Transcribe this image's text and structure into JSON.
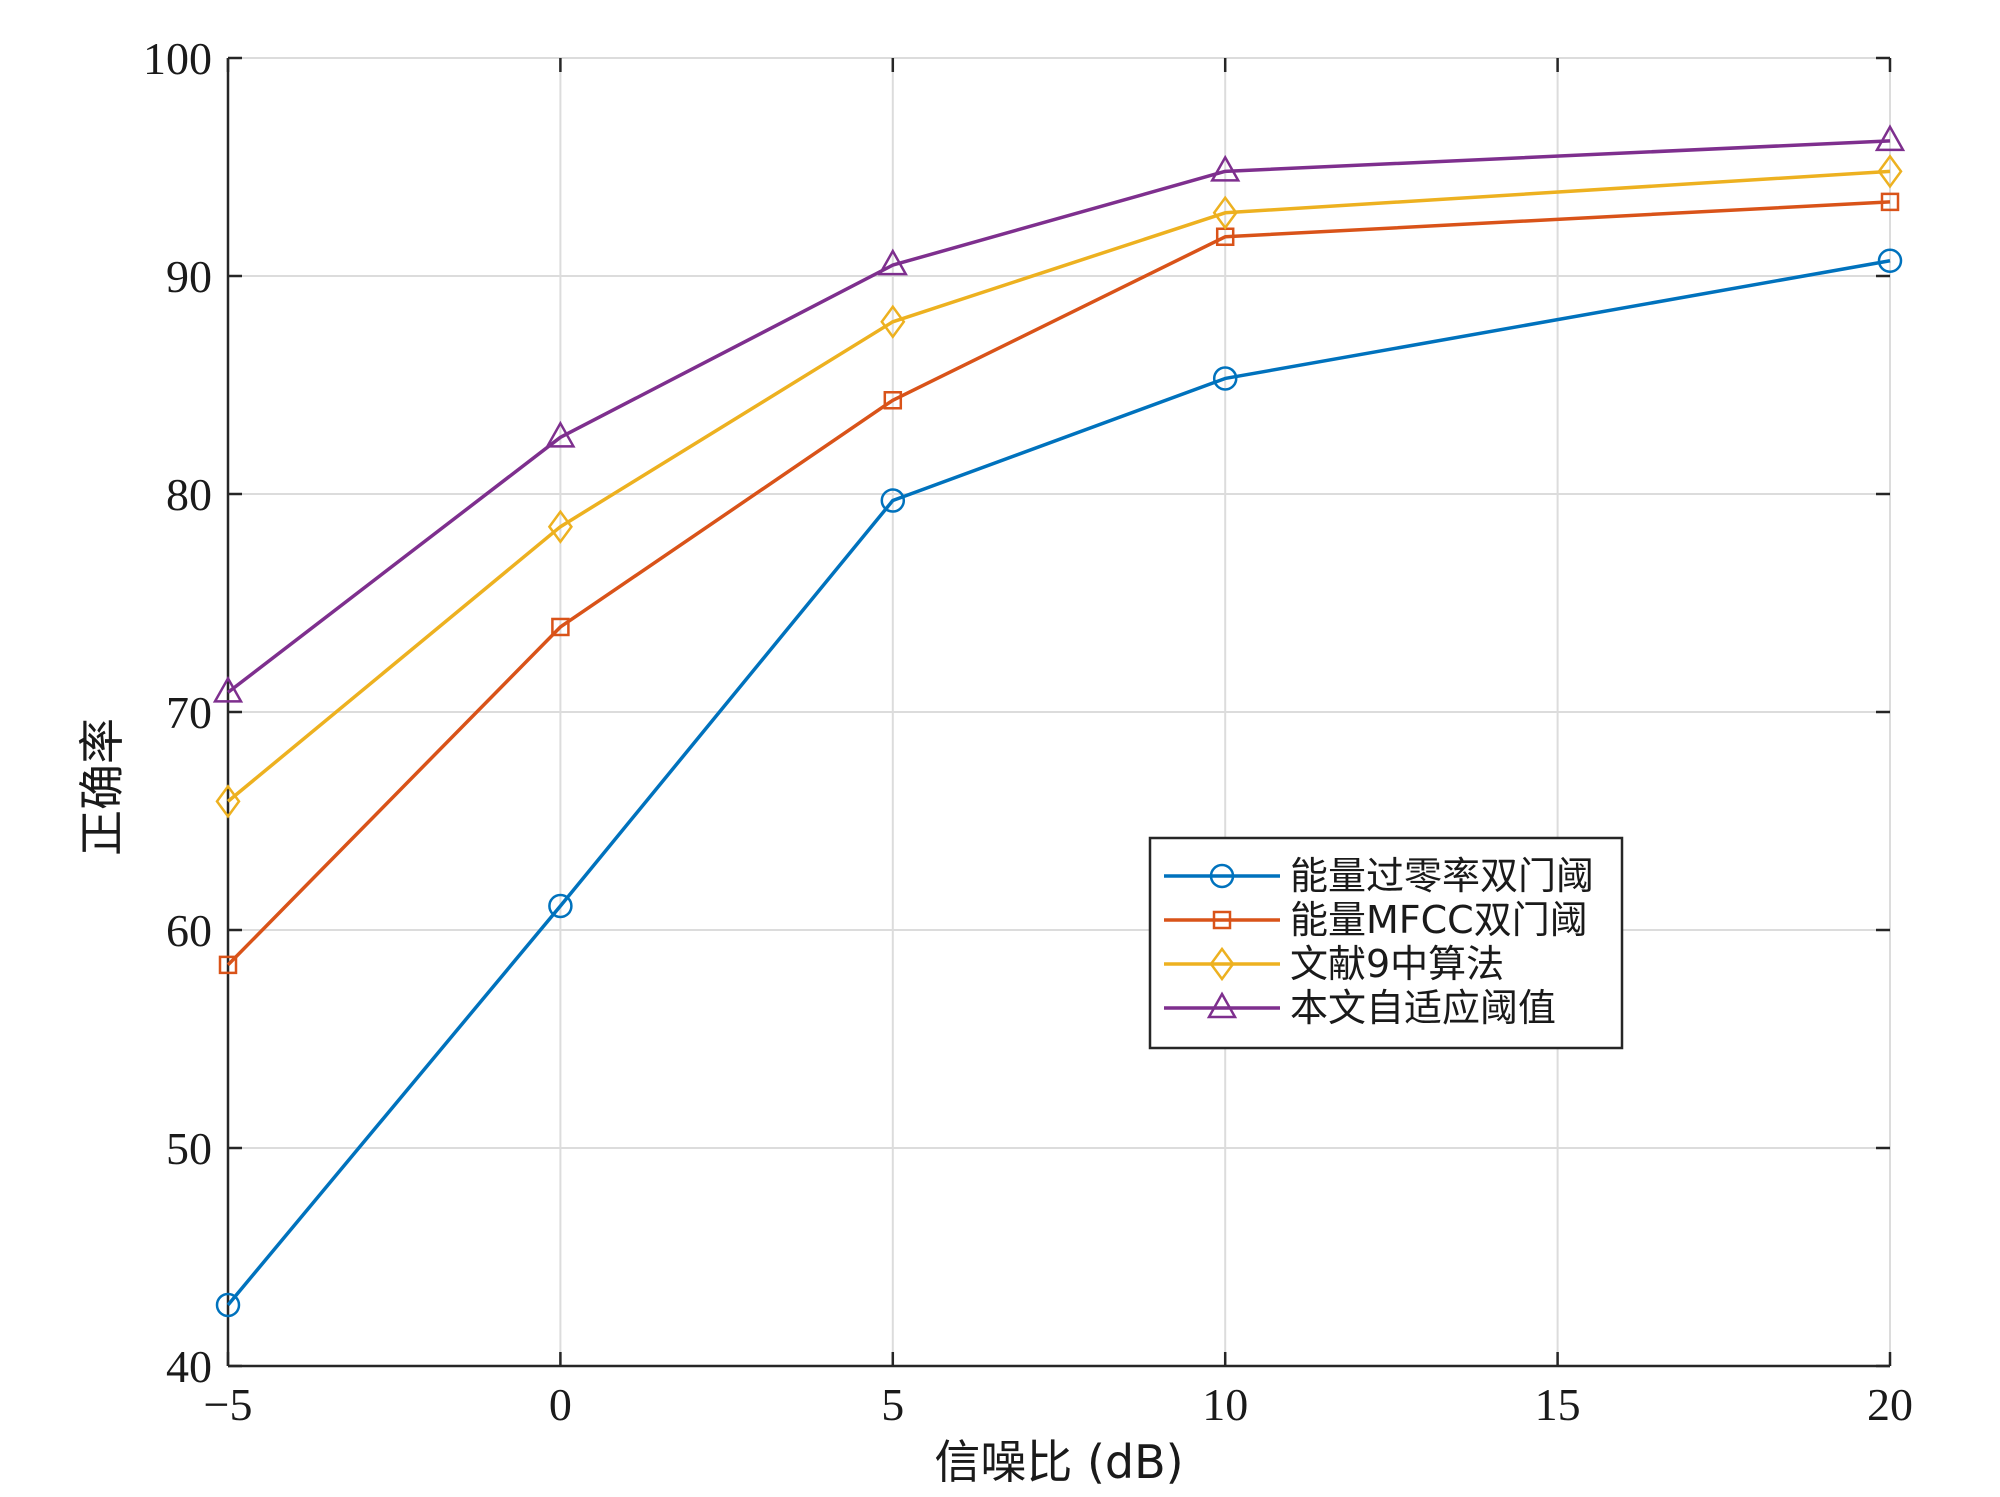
{
  "chart_data": {
    "type": "line",
    "title": "",
    "xlabel": "信噪比 (dB)",
    "ylabel": "正确率",
    "xlim": [
      -5,
      20
    ],
    "ylim": [
      40,
      100
    ],
    "xticks": [
      -5,
      0,
      5,
      10,
      15,
      20
    ],
    "xtick_labels": [
      "−5",
      "0",
      "5",
      "10",
      "15",
      "20"
    ],
    "yticks": [
      40,
      50,
      60,
      70,
      80,
      90,
      100
    ],
    "ytick_labels": [
      "40",
      "50",
      "60",
      "70",
      "80",
      "90",
      "100"
    ],
    "grid": true,
    "legend_position": "center-right",
    "x": [
      -5,
      0,
      5,
      10,
      20
    ],
    "series": [
      {
        "name": "能量过零率双门阈",
        "values": [
          42.8,
          61.1,
          79.7,
          85.3,
          90.7
        ],
        "color": "#0072BD",
        "marker": "circle"
      },
      {
        "name": "能量MFCC双门阈",
        "values": [
          58.4,
          73.9,
          84.3,
          91.8,
          93.4
        ],
        "color": "#D95319",
        "marker": "square"
      },
      {
        "name": "文献9中算法",
        "values": [
          65.9,
          78.5,
          87.9,
          92.9,
          94.8
        ],
        "color": "#EDB120",
        "marker": "diamond"
      },
      {
        "name": "本文自适应阈值",
        "values": [
          70.9,
          82.6,
          90.5,
          94.8,
          96.2
        ],
        "color": "#7E2F8E",
        "marker": "triangle"
      }
    ]
  }
}
